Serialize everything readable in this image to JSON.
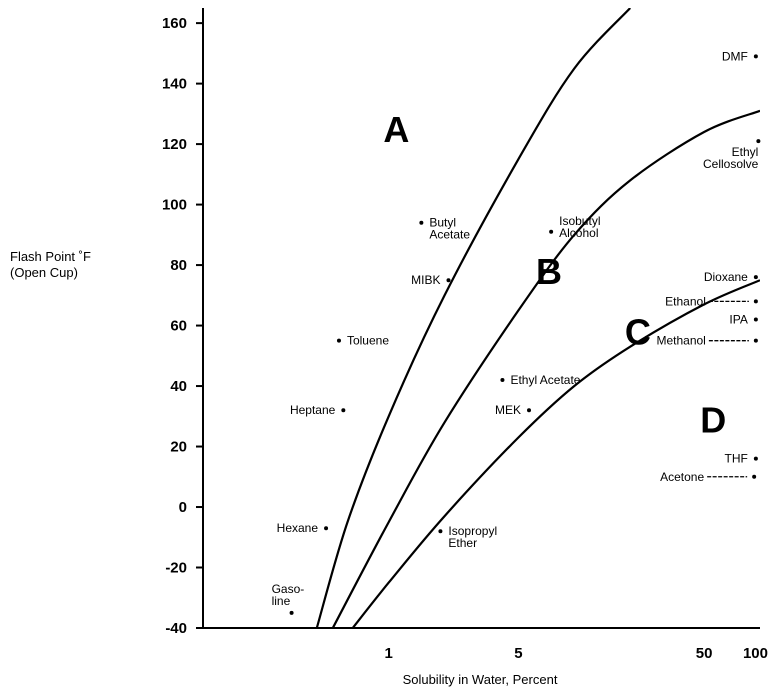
{
  "chart_data": {
    "type": "scatter",
    "title": "",
    "xlabel": "Solubility in Water, Percent",
    "ylabel_line1": "Flash Point ˚F",
    "ylabel_line2": "(Open Cup)",
    "x_scale": "log",
    "xlim": [
      0.1,
      100
    ],
    "ylim": [
      -40,
      165
    ],
    "x_ticks": [
      {
        "value": 1,
        "label": "1"
      },
      {
        "value": 5,
        "label": "5"
      },
      {
        "value": 50,
        "label": "50"
      },
      {
        "value": 100,
        "label": "100"
      }
    ],
    "y_ticks": [
      {
        "value": -40,
        "label": "-40"
      },
      {
        "value": -20,
        "label": "-20"
      },
      {
        "value": 0,
        "label": "0"
      },
      {
        "value": 20,
        "label": "20"
      },
      {
        "value": 40,
        "label": "40"
      },
      {
        "value": 60,
        "label": "60"
      },
      {
        "value": 80,
        "label": "80"
      },
      {
        "value": 100,
        "label": "100"
      },
      {
        "value": 120,
        "label": "120"
      },
      {
        "value": 140,
        "label": "140"
      },
      {
        "value": 160,
        "label": "160"
      }
    ],
    "grid": false,
    "regions": [
      {
        "label": "A",
        "x": 1.1,
        "y": 125
      },
      {
        "label": "B",
        "x": 7.3,
        "y": 78
      },
      {
        "label": "C",
        "x": 22,
        "y": 58
      },
      {
        "label": "D",
        "x": 56,
        "y": 29
      }
    ],
    "boundary_curves": [
      {
        "points": [
          [
            0.41,
            -40
          ],
          [
            0.6,
            -5
          ],
          [
            1,
            30
          ],
          [
            2,
            70
          ],
          [
            5,
            115
          ],
          [
            10,
            145
          ],
          [
            20,
            165
          ]
        ]
      },
      {
        "points": [
          [
            0.5,
            -40
          ],
          [
            1,
            -5
          ],
          [
            2,
            28
          ],
          [
            5,
            65
          ],
          [
            10,
            90
          ],
          [
            20,
            108
          ],
          [
            50,
            124
          ],
          [
            100,
            131
          ]
        ]
      },
      {
        "points": [
          [
            0.64,
            -40
          ],
          [
            1,
            -25
          ],
          [
            2,
            -3
          ],
          [
            5,
            23
          ],
          [
            10,
            40
          ],
          [
            20,
            53
          ],
          [
            50,
            67
          ],
          [
            100,
            75
          ]
        ]
      }
    ],
    "points": [
      {
        "lines": [
          "DMF"
        ],
        "x": 95,
        "y": 149,
        "anchor": "left"
      },
      {
        "lines": [
          "Ethyl",
          "Cellosolve"
        ],
        "x": 98,
        "y": 121,
        "anchor": "below-left"
      },
      {
        "lines": [
          "Butyl",
          "Acetate"
        ],
        "x": 1.5,
        "y": 94,
        "anchor": "right"
      },
      {
        "lines": [
          "Isobutyl",
          "Alcohol"
        ],
        "x": 7.5,
        "y": 91,
        "anchor": "right-up"
      },
      {
        "lines": [
          "MIBK"
        ],
        "x": 2.1,
        "y": 75,
        "anchor": "left"
      },
      {
        "lines": [
          "Dioxane"
        ],
        "x": 95,
        "y": 76,
        "anchor": "left"
      },
      {
        "lines": [
          "Ethanol"
        ],
        "x": 95,
        "y": 68,
        "anchor": "left-dashed"
      },
      {
        "lines": [
          "IPA"
        ],
        "x": 95,
        "y": 62,
        "anchor": "left"
      },
      {
        "lines": [
          "Methanol"
        ],
        "x": 95,
        "y": 55,
        "anchor": "left-dashed"
      },
      {
        "lines": [
          "Toluene"
        ],
        "x": 0.54,
        "y": 55,
        "anchor": "right"
      },
      {
        "lines": [
          "Ethyl Acetate"
        ],
        "x": 4.1,
        "y": 42,
        "anchor": "right"
      },
      {
        "lines": [
          "Heptane"
        ],
        "x": 0.57,
        "y": 32,
        "anchor": "left"
      },
      {
        "lines": [
          "MEK"
        ],
        "x": 5.7,
        "y": 32,
        "anchor": "left"
      },
      {
        "lines": [
          "THF"
        ],
        "x": 95,
        "y": 16,
        "anchor": "left"
      },
      {
        "lines": [
          "Acetone"
        ],
        "x": 93,
        "y": 10,
        "anchor": "left-dashed"
      },
      {
        "lines": [
          "Hexane"
        ],
        "x": 0.46,
        "y": -7,
        "anchor": "left"
      },
      {
        "lines": [
          "Isopropyl",
          "Ether"
        ],
        "x": 1.9,
        "y": -8,
        "anchor": "right"
      },
      {
        "lines": [
          "Gaso-",
          "line"
        ],
        "x": 0.3,
        "y": -35,
        "anchor": "above"
      }
    ]
  }
}
